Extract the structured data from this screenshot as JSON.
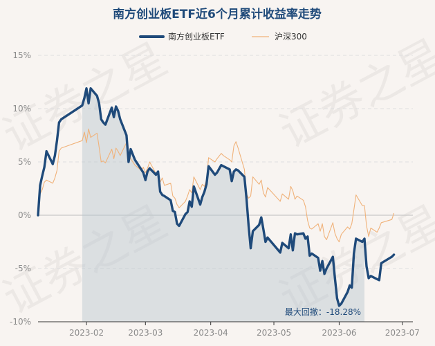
{
  "chart_data": {
    "type": "line",
    "title": "南方创业板ETF近6个月累计收益率走势",
    "watermark": "证券之星",
    "legend": "top-center",
    "grid": true,
    "y_axis": {
      "ylim": [
        -10,
        15
      ],
      "ticks": [
        15,
        10,
        5,
        0,
        -5,
        -10
      ],
      "tick_labels": [
        "15%",
        "10%",
        "5%",
        "0%",
        "-5%",
        "-10%"
      ]
    },
    "x_axis": {
      "xlim": [
        "2023-01-09",
        "2023-07-06"
      ],
      "tick_dates": [
        "2023-02-01",
        "2023-03-01",
        "2023-04-01",
        "2023-05-01",
        "2023-06-01",
        "2023-07-01"
      ],
      "tick_labels": [
        "2023-02",
        "2023-03",
        "2023-04",
        "2023-05",
        "2023-06",
        "2023-07"
      ]
    },
    "drawdown": {
      "label": "最大回撤：-18.28%",
      "start": "2023-01-30",
      "end": "2023-06-13"
    },
    "colors": {
      "fund": "#1f4a7a",
      "index": "#f0b27a",
      "drawdown_fill": "#b8c6cf",
      "grid": "#dedede",
      "zero_line": "#c8c8c8"
    },
    "series": [
      {
        "name": "南方创业板ETF",
        "values": [
          [
            "2023-01-09",
            0.0
          ],
          [
            "2023-01-10",
            2.8
          ],
          [
            "2023-01-11",
            3.7
          ],
          [
            "2023-01-12",
            4.5
          ],
          [
            "2023-01-13",
            6.0
          ],
          [
            "2023-01-16",
            4.8
          ],
          [
            "2023-01-17",
            5.6
          ],
          [
            "2023-01-18",
            7.0
          ],
          [
            "2023-01-19",
            8.7
          ],
          [
            "2023-01-20",
            9.0
          ],
          [
            "2023-01-30",
            10.3
          ],
          [
            "2023-01-31",
            11.0
          ],
          [
            "2023-02-01",
            11.9
          ],
          [
            "2023-02-02",
            10.5
          ],
          [
            "2023-02-03",
            11.9
          ],
          [
            "2023-02-06",
            11.2
          ],
          [
            "2023-02-07",
            10.5
          ],
          [
            "2023-02-08",
            9.0
          ],
          [
            "2023-02-09",
            8.7
          ],
          [
            "2023-02-10",
            8.5
          ],
          [
            "2023-02-13",
            10.1
          ],
          [
            "2023-02-14",
            9.2
          ],
          [
            "2023-02-15",
            10.2
          ],
          [
            "2023-02-16",
            9.8
          ],
          [
            "2023-02-17",
            9.0
          ],
          [
            "2023-02-20",
            7.5
          ],
          [
            "2023-02-21",
            5.0
          ],
          [
            "2023-02-22",
            6.2
          ],
          [
            "2023-02-23",
            5.7
          ],
          [
            "2023-02-24",
            5.2
          ],
          [
            "2023-02-27",
            4.3
          ],
          [
            "2023-02-28",
            4.0
          ],
          [
            "2023-03-01",
            3.3
          ],
          [
            "2023-03-02",
            4.1
          ],
          [
            "2023-03-03",
            4.4
          ],
          [
            "2023-03-06",
            3.8
          ],
          [
            "2023-03-07",
            4.1
          ],
          [
            "2023-03-08",
            2.2
          ],
          [
            "2023-03-09",
            1.9
          ],
          [
            "2023-03-10",
            1.8
          ],
          [
            "2023-03-13",
            1.4
          ],
          [
            "2023-03-14",
            0.4
          ],
          [
            "2023-03-15",
            0.3
          ],
          [
            "2023-03-16",
            -0.8
          ],
          [
            "2023-03-17",
            -1.0
          ],
          [
            "2023-03-20",
            0.1
          ],
          [
            "2023-03-21",
            0.3
          ],
          [
            "2023-03-22",
            1.3
          ],
          [
            "2023-03-23",
            0.8
          ],
          [
            "2023-03-24",
            2.7
          ],
          [
            "2023-03-27",
            1.0
          ],
          [
            "2023-03-28",
            1.7
          ],
          [
            "2023-03-29",
            2.2
          ],
          [
            "2023-03-30",
            2.9
          ],
          [
            "2023-03-31",
            4.6
          ],
          [
            "2023-04-03",
            3.8
          ],
          [
            "2023-04-04",
            4.0
          ],
          [
            "2023-04-06",
            4.7
          ],
          [
            "2023-04-07",
            4.6
          ],
          [
            "2023-04-10",
            4.3
          ],
          [
            "2023-04-11",
            3.2
          ],
          [
            "2023-04-12",
            4.1
          ],
          [
            "2023-04-13",
            4.3
          ],
          [
            "2023-04-14",
            4.2
          ],
          [
            "2023-04-17",
            3.6
          ],
          [
            "2023-04-18",
            1.6
          ],
          [
            "2023-04-19",
            -1.0
          ],
          [
            "2023-04-20",
            -3.1
          ],
          [
            "2023-04-21",
            -1.5
          ],
          [
            "2023-04-24",
            -0.9
          ],
          [
            "2023-04-25",
            -0.2
          ],
          [
            "2023-04-26",
            -1.3
          ],
          [
            "2023-04-27",
            -2.5
          ],
          [
            "2023-04-28",
            -2.1
          ],
          [
            "2023-05-04",
            -3.5
          ],
          [
            "2023-05-05",
            -2.6
          ],
          [
            "2023-05-08",
            -3.1
          ],
          [
            "2023-05-09",
            -1.8
          ],
          [
            "2023-05-10",
            -3.3
          ],
          [
            "2023-05-11",
            -1.7
          ],
          [
            "2023-05-12",
            -1.8
          ],
          [
            "2023-05-15",
            -1.7
          ],
          [
            "2023-05-16",
            -2.2
          ],
          [
            "2023-05-17",
            -2.0
          ],
          [
            "2023-05-18",
            -3.8
          ],
          [
            "2023-05-19",
            -3.6
          ],
          [
            "2023-05-22",
            -4.0
          ],
          [
            "2023-05-23",
            -5.2
          ],
          [
            "2023-05-24",
            -4.3
          ],
          [
            "2023-05-25",
            -5.5
          ],
          [
            "2023-05-26",
            -5.0
          ],
          [
            "2023-05-29",
            -3.9
          ],
          [
            "2023-05-30",
            -5.9
          ],
          [
            "2023-05-31",
            -7.8
          ],
          [
            "2023-06-01",
            -8.5
          ],
          [
            "2023-06-02",
            -8.3
          ],
          [
            "2023-06-05",
            -7.2
          ],
          [
            "2023-06-06",
            -6.6
          ],
          [
            "2023-06-07",
            -6.8
          ],
          [
            "2023-06-08",
            -3.6
          ],
          [
            "2023-06-09",
            -2.2
          ],
          [
            "2023-06-12",
            -2.5
          ],
          [
            "2023-06-13",
            -2.2
          ],
          [
            "2023-06-14",
            -4.8
          ],
          [
            "2023-06-15",
            -5.9
          ],
          [
            "2023-06-16",
            -5.7
          ],
          [
            "2023-06-19",
            -6.0
          ],
          [
            "2023-06-20",
            -6.1
          ],
          [
            "2023-06-21",
            -4.5
          ],
          [
            "2023-06-26",
            -3.9
          ],
          [
            "2023-06-27",
            -3.7
          ]
        ]
      },
      {
        "name": "沪深300",
        "values": [
          [
            "2023-01-09",
            0.0
          ],
          [
            "2023-01-10",
            2.0
          ],
          [
            "2023-01-11",
            2.4
          ],
          [
            "2023-01-12",
            3.1
          ],
          [
            "2023-01-13",
            3.3
          ],
          [
            "2023-01-16",
            3.0
          ],
          [
            "2023-01-17",
            3.5
          ],
          [
            "2023-01-18",
            4.2
          ],
          [
            "2023-01-19",
            6.0
          ],
          [
            "2023-01-20",
            6.3
          ],
          [
            "2023-01-30",
            7.0
          ],
          [
            "2023-01-31",
            7.8
          ],
          [
            "2023-02-01",
            6.8
          ],
          [
            "2023-02-02",
            8.1
          ],
          [
            "2023-02-03",
            7.3
          ],
          [
            "2023-02-06",
            7.7
          ],
          [
            "2023-02-07",
            6.4
          ],
          [
            "2023-02-08",
            5.0
          ],
          [
            "2023-02-09",
            5.1
          ],
          [
            "2023-02-10",
            4.9
          ],
          [
            "2023-02-13",
            6.2
          ],
          [
            "2023-02-14",
            5.3
          ],
          [
            "2023-02-15",
            6.3
          ],
          [
            "2023-02-16",
            6.0
          ],
          [
            "2023-02-17",
            5.6
          ],
          [
            "2023-02-20",
            6.8
          ],
          [
            "2023-02-21",
            5.8
          ],
          [
            "2023-02-22",
            5.3
          ],
          [
            "2023-02-23",
            5.0
          ],
          [
            "2023-02-24",
            4.7
          ],
          [
            "2023-02-27",
            4.2
          ],
          [
            "2023-02-28",
            4.5
          ],
          [
            "2023-03-01",
            4.0
          ],
          [
            "2023-03-02",
            4.4
          ],
          [
            "2023-03-03",
            5.0
          ],
          [
            "2023-03-06",
            3.9
          ],
          [
            "2023-03-07",
            4.1
          ],
          [
            "2023-03-08",
            3.1
          ],
          [
            "2023-03-09",
            3.5
          ],
          [
            "2023-03-10",
            2.8
          ],
          [
            "2023-03-13",
            3.0
          ],
          [
            "2023-03-14",
            1.8
          ],
          [
            "2023-03-15",
            1.6
          ],
          [
            "2023-03-16",
            1.0
          ],
          [
            "2023-03-17",
            0.7
          ],
          [
            "2023-03-20",
            1.3
          ],
          [
            "2023-03-21",
            1.8
          ],
          [
            "2023-03-22",
            2.4
          ],
          [
            "2023-03-23",
            2.1
          ],
          [
            "2023-03-24",
            3.6
          ],
          [
            "2023-03-27",
            2.4
          ],
          [
            "2023-03-28",
            2.9
          ],
          [
            "2023-03-29",
            2.7
          ],
          [
            "2023-03-30",
            3.3
          ],
          [
            "2023-03-31",
            5.4
          ],
          [
            "2023-04-03",
            5.0
          ],
          [
            "2023-04-04",
            5.3
          ],
          [
            "2023-04-06",
            5.8
          ],
          [
            "2023-04-07",
            5.6
          ],
          [
            "2023-04-10",
            5.2
          ],
          [
            "2023-04-11",
            5.0
          ],
          [
            "2023-04-12",
            6.5
          ],
          [
            "2023-04-13",
            6.9
          ],
          [
            "2023-04-14",
            6.3
          ],
          [
            "2023-04-17",
            4.3
          ],
          [
            "2023-04-18",
            2.0
          ],
          [
            "2023-04-19",
            1.6
          ],
          [
            "2023-04-20",
            1.8
          ],
          [
            "2023-04-21",
            3.6
          ],
          [
            "2023-04-24",
            2.9
          ],
          [
            "2023-04-25",
            3.3
          ],
          [
            "2023-04-26",
            2.1
          ],
          [
            "2023-04-27",
            1.7
          ],
          [
            "2023-04-28",
            2.6
          ],
          [
            "2023-05-04",
            1.3
          ],
          [
            "2023-05-05",
            2.0
          ],
          [
            "2023-05-08",
            1.5
          ],
          [
            "2023-05-09",
            2.7
          ],
          [
            "2023-05-10",
            2.3
          ],
          [
            "2023-05-11",
            1.5
          ],
          [
            "2023-05-12",
            1.8
          ],
          [
            "2023-05-15",
            1.4
          ],
          [
            "2023-05-16",
            0.8
          ],
          [
            "2023-05-17",
            -0.5
          ],
          [
            "2023-05-18",
            -1.2
          ],
          [
            "2023-05-19",
            -1.3
          ],
          [
            "2023-05-22",
            -0.8
          ],
          [
            "2023-05-23",
            -1.5
          ],
          [
            "2023-05-24",
            -0.8
          ],
          [
            "2023-05-25",
            -2.0
          ],
          [
            "2023-05-26",
            -2.3
          ],
          [
            "2023-05-29",
            -0.7
          ],
          [
            "2023-05-30",
            -1.7
          ],
          [
            "2023-05-31",
            -2.2
          ],
          [
            "2023-06-01",
            -2.5
          ],
          [
            "2023-06-02",
            -1.8
          ],
          [
            "2023-06-05",
            -1.1
          ],
          [
            "2023-06-06",
            -1.3
          ],
          [
            "2023-06-07",
            -0.8
          ],
          [
            "2023-06-08",
            0.5
          ],
          [
            "2023-06-09",
            1.9
          ],
          [
            "2023-06-12",
            0.9
          ],
          [
            "2023-06-13",
            0.9
          ],
          [
            "2023-06-14",
            -1.0
          ],
          [
            "2023-06-15",
            -2.0
          ],
          [
            "2023-06-16",
            -1.2
          ],
          [
            "2023-06-19",
            -1.6
          ],
          [
            "2023-06-20",
            -1.2
          ],
          [
            "2023-06-21",
            -0.7
          ],
          [
            "2023-06-26",
            -0.4
          ],
          [
            "2023-06-27",
            0.2
          ]
        ]
      }
    ]
  }
}
